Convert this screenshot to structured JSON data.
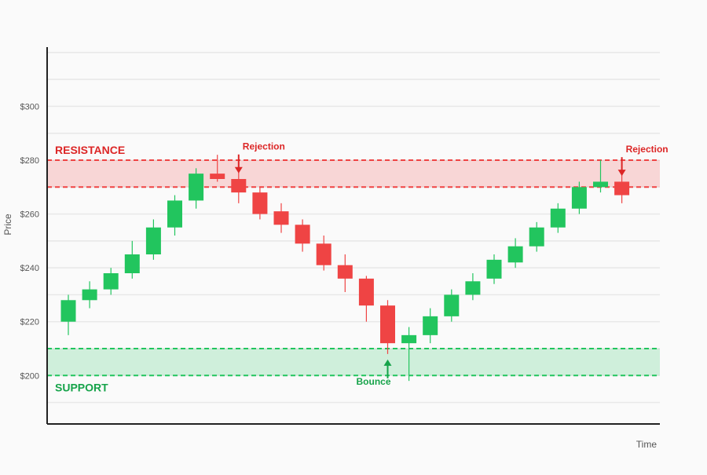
{
  "chart_data": {
    "type": "candlestick",
    "title": "",
    "xlabel": "Time",
    "ylabel": "Price",
    "ylim": [
      182,
      322
    ],
    "y_ticks": [
      {
        "value": 200,
        "label": "$200"
      },
      {
        "value": 220,
        "label": "$220"
      },
      {
        "value": 240,
        "label": "$240"
      },
      {
        "value": 260,
        "label": "$260"
      },
      {
        "value": 280,
        "label": "$280"
      },
      {
        "value": 300,
        "label": "$300"
      }
    ],
    "grid": true,
    "colors": {
      "up": "#22c55e",
      "down": "#ef4444",
      "resistance": "#ef4444",
      "support": "#22c55e",
      "resistance_label": "#dc2626",
      "support_label": "#16a34a",
      "axis": "#222222",
      "grid": "#e8e8e8",
      "tick_label": "#555555"
    },
    "zones": {
      "resistance": {
        "label": "RESISTANCE",
        "low": 270,
        "high": 280
      },
      "support": {
        "label": "SUPPORT",
        "low": 200,
        "high": 210
      }
    },
    "candles": [
      {
        "open": 220,
        "close": 228,
        "high": 230,
        "low": 215
      },
      {
        "open": 228,
        "close": 232,
        "high": 235,
        "low": 225
      },
      {
        "open": 232,
        "close": 238,
        "high": 240,
        "low": 230
      },
      {
        "open": 238,
        "close": 245,
        "high": 250,
        "low": 236
      },
      {
        "open": 245,
        "close": 255,
        "high": 258,
        "low": 243
      },
      {
        "open": 255,
        "close": 265,
        "high": 267,
        "low": 252
      },
      {
        "open": 265,
        "close": 275,
        "high": 277,
        "low": 262
      },
      {
        "open": 275,
        "close": 273,
        "high": 282,
        "low": 272
      },
      {
        "open": 273,
        "close": 268,
        "high": 276,
        "low": 264
      },
      {
        "open": 268,
        "close": 260,
        "high": 270,
        "low": 258
      },
      {
        "open": 261,
        "close": 256,
        "high": 264,
        "low": 253
      },
      {
        "open": 256,
        "close": 249,
        "high": 258,
        "low": 246
      },
      {
        "open": 249,
        "close": 241,
        "high": 252,
        "low": 239
      },
      {
        "open": 241,
        "close": 236,
        "high": 245,
        "low": 231
      },
      {
        "open": 236,
        "close": 226,
        "high": 237,
        "low": 220
      },
      {
        "open": 226,
        "close": 212,
        "high": 228,
        "low": 208
      },
      {
        "open": 212,
        "close": 215,
        "high": 218,
        "low": 198
      },
      {
        "open": 215,
        "close": 222,
        "high": 225,
        "low": 212
      },
      {
        "open": 222,
        "close": 230,
        "high": 232,
        "low": 220
      },
      {
        "open": 230,
        "close": 235,
        "high": 238,
        "low": 228
      },
      {
        "open": 236,
        "close": 243,
        "high": 245,
        "low": 234
      },
      {
        "open": 242,
        "close": 248,
        "high": 251,
        "low": 240
      },
      {
        "open": 248,
        "close": 255,
        "high": 257,
        "low": 246
      },
      {
        "open": 255,
        "close": 262,
        "high": 264,
        "low": 253
      },
      {
        "open": 262,
        "close": 270,
        "high": 272,
        "low": 260
      },
      {
        "open": 270,
        "close": 272,
        "high": 280,
        "low": 268
      },
      {
        "open": 272,
        "close": 267,
        "high": 275,
        "low": 264
      }
    ],
    "annotations": [
      {
        "text": "Rejection",
        "candle_index": 8,
        "direction": "down",
        "color": "#dc2626"
      },
      {
        "text": "Bounce",
        "candle_index": 15,
        "direction": "up",
        "color": "#16a34a"
      },
      {
        "text": "Rejection",
        "candle_index": 26,
        "direction": "down",
        "color": "#dc2626"
      }
    ]
  }
}
